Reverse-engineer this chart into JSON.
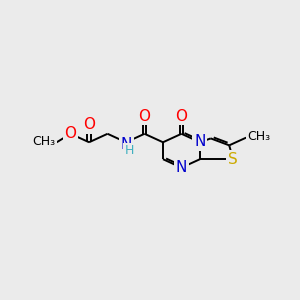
{
  "background_color": "#ebebeb",
  "bond_color": "#000000",
  "bond_lw": 1.4,
  "atom_colors": {
    "O": "#ff0000",
    "N": "#0000cd",
    "S": "#ccaa00",
    "C": "#000000",
    "H": "#40b0c0"
  },
  "font_size": 11
}
